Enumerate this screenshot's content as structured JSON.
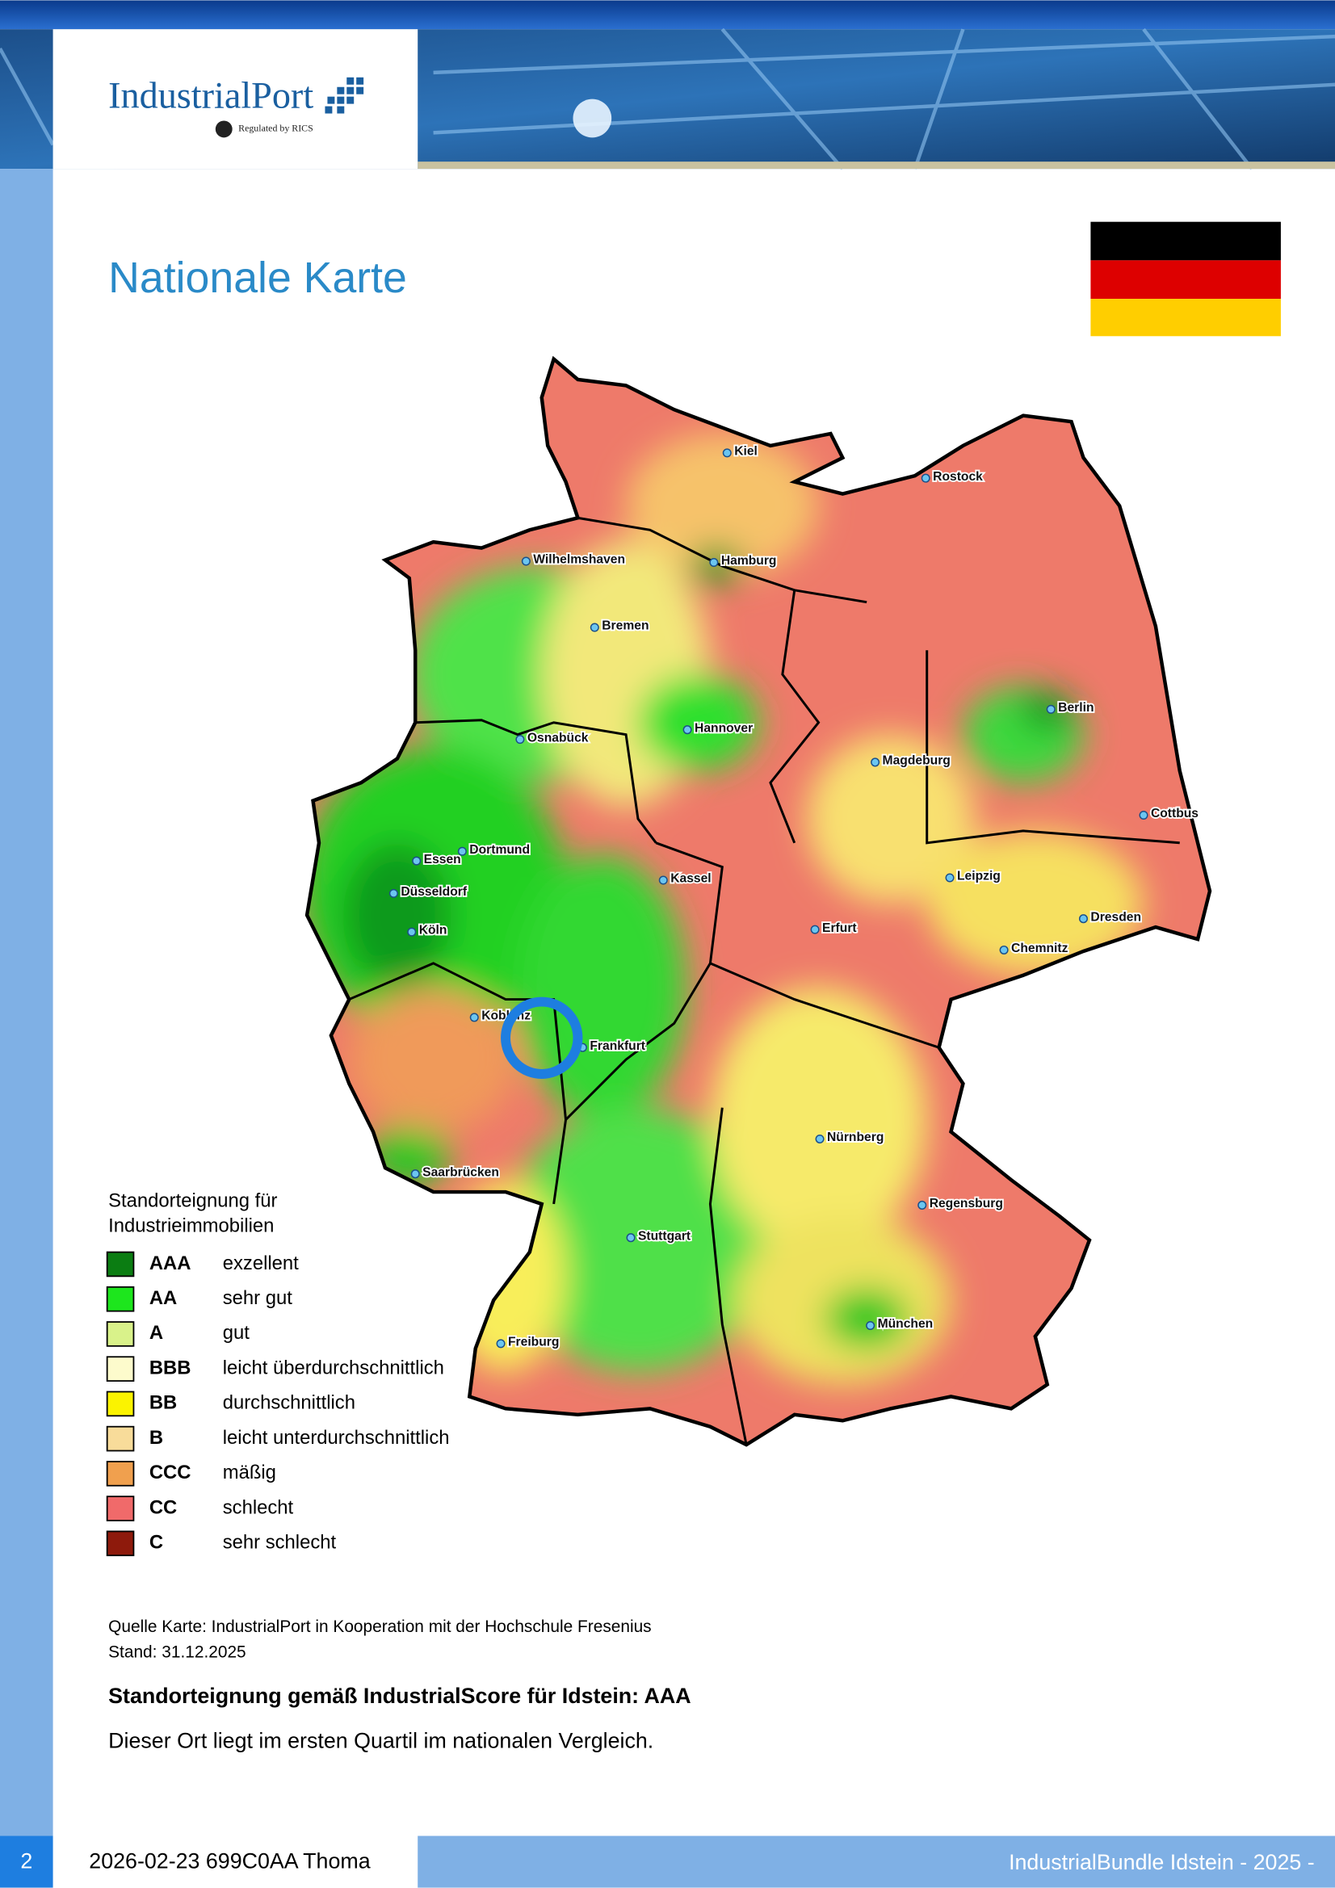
{
  "header": {
    "logo": "IndustrialPort",
    "logo_tagline": "Regulated by RICS"
  },
  "title": "Nationale Karte",
  "map": {
    "cities": [
      "Kiel",
      "Rostock",
      "Wilhelmshaven",
      "Hamburg",
      "Bremen",
      "Hannover",
      "Berlin",
      "Osnabück",
      "Magdeburg",
      "Cottbus",
      "Dortmund",
      "Essen",
      "Düsseldorf",
      "Kassel",
      "Leipzig",
      "Köln",
      "Erfurt",
      "Dresden",
      "Chemnitz",
      "Koblenz",
      "Frankfurt",
      "Nürnberg",
      "Saarbrücken",
      "Regensburg",
      "Stuttgart",
      "München",
      "Freiburg"
    ]
  },
  "legend": {
    "title_lines": [
      "Standorteignung für",
      "Industrieimmobilien"
    ],
    "items": [
      {
        "code": "AAA",
        "label": "exzellent",
        "color": "#0b7d12"
      },
      {
        "code": "AA",
        "label": "sehr gut",
        "color": "#1de61d"
      },
      {
        "code": "A",
        "label": "gut",
        "color": "#d9f28a"
      },
      {
        "code": "BBB",
        "label": "leicht überdurchschnittlich",
        "color": "#fdfbcc"
      },
      {
        "code": "BB",
        "label": "durchschnittlich",
        "color": "#fbf300"
      },
      {
        "code": "B",
        "label": "leicht unterdurchschnittlich",
        "color": "#f8dc9a"
      },
      {
        "code": "CCC",
        "label": "mäßig",
        "color": "#f0a04e"
      },
      {
        "code": "CC",
        "label": "schlecht",
        "color": "#f06a6a"
      },
      {
        "code": "C",
        "label": "sehr schlecht",
        "color": "#8e1a0c"
      }
    ]
  },
  "source_lines": [
    "Quelle Karte: IndustrialPort in Kooperation mit der Hochschule Fresenius",
    "Stand: 31.12.2025"
  ],
  "score_heading": "Standorteignung gemäß IndustrialScore für Idstein: AAA",
  "score_text": "Dieser Ort liegt im ersten Quartil im nationalen Vergleich.",
  "footer": {
    "page": "2",
    "doc_id": "2026-02-23 699C0AA Thoma",
    "bundle": "IndustrialBundle Idstein - 2025 -"
  }
}
